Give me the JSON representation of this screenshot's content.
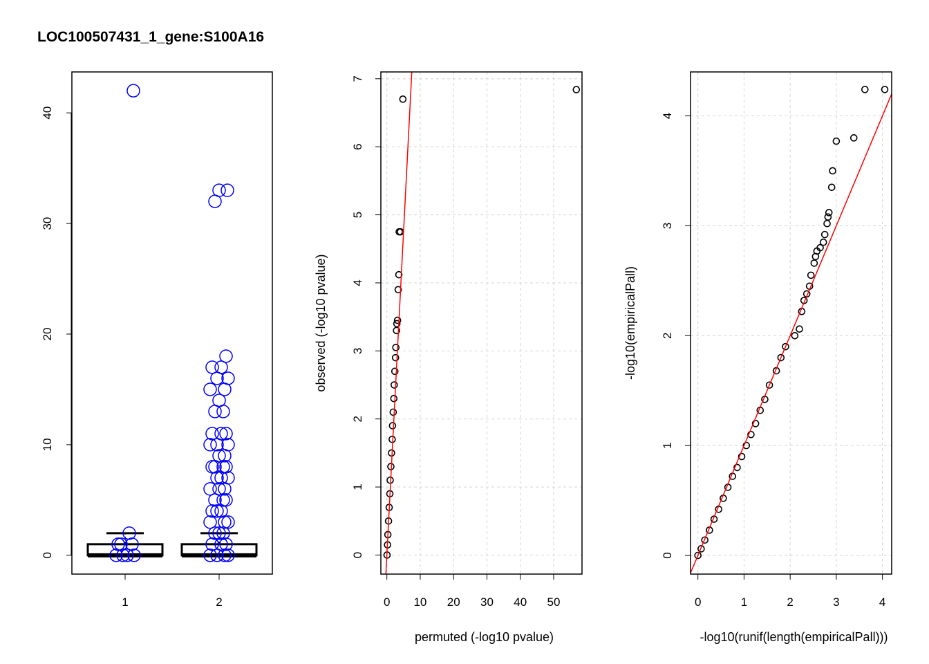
{
  "title": "LOC100507431_1_gene:S100A16",
  "colors": {
    "boxpoints": "#0000ff",
    "qqpoints": "#000000",
    "refline": "#ff0000",
    "grid": "#d3d3d3"
  },
  "chart_data": [
    {
      "type": "box",
      "grid": false,
      "xlabel": "",
      "ylabel": "",
      "ylim": [
        -1.7,
        43.7
      ],
      "yticks": [
        0,
        10,
        20,
        30,
        40
      ],
      "categories": [
        "1",
        "2"
      ],
      "boxes": [
        {
          "category": "1",
          "min": 0,
          "q1": 0,
          "median": 0,
          "q3": 1,
          "whisker_high": 2
        },
        {
          "category": "2",
          "min": 0,
          "q1": 0,
          "median": 0,
          "q3": 1,
          "whisker_high": 2
        }
      ],
      "points": [
        {
          "group": "1",
          "values": [
            42,
            2,
            1,
            1,
            1,
            0,
            0,
            0,
            0
          ]
        },
        {
          "group": "2",
          "values": [
            33,
            33,
            32,
            18,
            17,
            17,
            16,
            16,
            15,
            15,
            14,
            13,
            13,
            11,
            11,
            11,
            10,
            10,
            10,
            9,
            9,
            8,
            8,
            8,
            8,
            7,
            7,
            7,
            6,
            6,
            6,
            5,
            5,
            5,
            4,
            4,
            4,
            3,
            3,
            3,
            2,
            2,
            2,
            1,
            1,
            1,
            0,
            0,
            0,
            0
          ]
        }
      ]
    },
    {
      "type": "scatter",
      "grid": true,
      "xlabel": "permuted (-log10 pvalue)",
      "ylabel": "observed (-log10 pvalue)",
      "xlim": [
        -1.8,
        58.5
      ],
      "ylim": [
        -0.28,
        7.1
      ],
      "xticks": [
        0,
        10,
        20,
        30,
        40,
        50
      ],
      "yticks": [
        0,
        1,
        2,
        3,
        4,
        5,
        6,
        7
      ],
      "points": [
        [
          56.8,
          6.84
        ],
        [
          4.8,
          6.7
        ],
        [
          4.1,
          4.75
        ],
        [
          3.7,
          4.75
        ],
        [
          3.6,
          4.12
        ],
        [
          3.4,
          3.9
        ],
        [
          3.2,
          3.45
        ],
        [
          3.0,
          3.4
        ],
        [
          2.9,
          3.3
        ],
        [
          2.7,
          3.05
        ],
        [
          2.6,
          2.9
        ],
        [
          2.4,
          2.7
        ],
        [
          2.2,
          2.5
        ],
        [
          2.1,
          2.3
        ],
        [
          1.9,
          2.1
        ],
        [
          1.7,
          1.9
        ],
        [
          1.6,
          1.7
        ],
        [
          1.4,
          1.5
        ],
        [
          1.2,
          1.3
        ],
        [
          1.0,
          1.1
        ],
        [
          0.9,
          0.9
        ],
        [
          0.7,
          0.7
        ],
        [
          0.5,
          0.5
        ],
        [
          0.3,
          0.3
        ],
        [
          0.2,
          0.15
        ],
        [
          0.05,
          0.0
        ]
      ],
      "reference_line": {
        "intercept": 0,
        "slope": 0.95
      }
    },
    {
      "type": "scatter",
      "grid": true,
      "xlabel": "-log10(runif(length(empiricalPall)))",
      "ylabel": "-log10(empiricalPall)",
      "xlim": [
        -0.16,
        4.2
      ],
      "ylim": [
        -0.17,
        4.4
      ],
      "xticks": [
        0,
        1,
        2,
        3,
        4
      ],
      "yticks": [
        0,
        1,
        2,
        3,
        4
      ],
      "points": [
        [
          4.05,
          4.24
        ],
        [
          3.62,
          4.24
        ],
        [
          3.38,
          3.8
        ],
        [
          3.0,
          3.77
        ],
        [
          2.92,
          3.5
        ],
        [
          2.9,
          3.35
        ],
        [
          2.84,
          3.12
        ],
        [
          2.82,
          3.08
        ],
        [
          2.8,
          3.02
        ],
        [
          2.75,
          2.92
        ],
        [
          2.72,
          2.85
        ],
        [
          2.65,
          2.8
        ],
        [
          2.58,
          2.77
        ],
        [
          2.55,
          2.72
        ],
        [
          2.52,
          2.66
        ],
        [
          2.45,
          2.55
        ],
        [
          2.42,
          2.45
        ],
        [
          2.36,
          2.38
        ],
        [
          2.3,
          2.32
        ],
        [
          2.25,
          2.22
        ],
        [
          2.2,
          2.06
        ],
        [
          2.1,
          2.0
        ],
        [
          1.9,
          1.9
        ],
        [
          1.8,
          1.8
        ],
        [
          1.7,
          1.68
        ],
        [
          1.55,
          1.55
        ],
        [
          1.45,
          1.42
        ],
        [
          1.35,
          1.32
        ],
        [
          1.25,
          1.2
        ],
        [
          1.15,
          1.1
        ],
        [
          1.05,
          1.0
        ],
        [
          0.95,
          0.9
        ],
        [
          0.85,
          0.8
        ],
        [
          0.75,
          0.72
        ],
        [
          0.65,
          0.62
        ],
        [
          0.55,
          0.52
        ],
        [
          0.45,
          0.42
        ],
        [
          0.35,
          0.33
        ],
        [
          0.25,
          0.23
        ],
        [
          0.15,
          0.14
        ],
        [
          0.07,
          0.06
        ],
        [
          0.0,
          0.0
        ]
      ],
      "reference_line": {
        "intercept": 0,
        "slope": 1
      }
    }
  ]
}
